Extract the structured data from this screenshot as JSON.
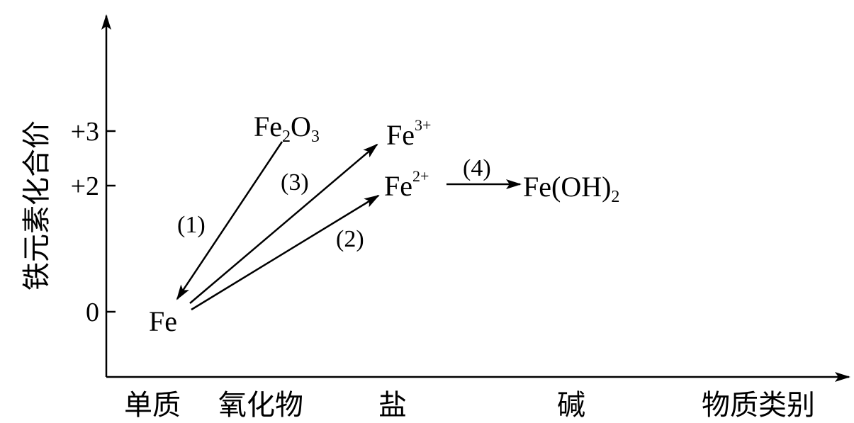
{
  "axes": {
    "y_label": "铁元素化合价",
    "x_label": "物质类别",
    "y_ticks": [
      "+3",
      "+2",
      "0"
    ],
    "x_categories": [
      "单质",
      "氧化物",
      "盐",
      "碱"
    ]
  },
  "species": {
    "fe": "Fe",
    "fe2o3": {
      "base1": "Fe",
      "sub1": "2",
      "base2": "O",
      "sub2": "3"
    },
    "fe3": {
      "base": "Fe",
      "sup": "3+"
    },
    "fe2": {
      "base": "Fe",
      "sup": "2+"
    },
    "feoh2": {
      "base": "Fe(OH)",
      "sub": "2"
    }
  },
  "reactions": {
    "r1": "(1)",
    "r2": "(2)",
    "r3": "(3)",
    "r4": "(4)"
  },
  "colors": {
    "ink": "#000000",
    "background": "#ffffff"
  }
}
